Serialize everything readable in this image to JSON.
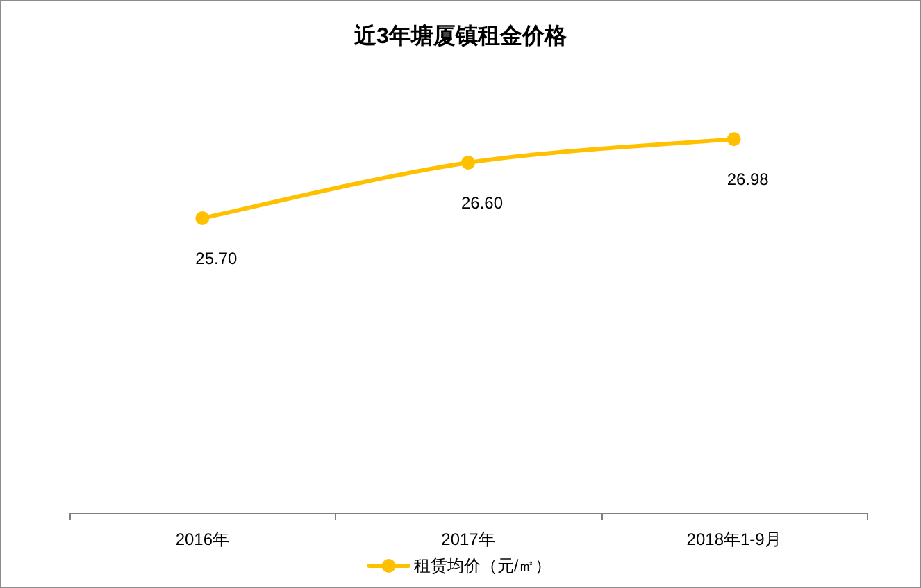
{
  "chart_data": {
    "type": "line",
    "title": "近3年塘厦镇租金价格",
    "categories": [
      "2016年",
      "2017年",
      "2018年1-9月"
    ],
    "series": [
      {
        "name": "租赁均价（元/㎡）",
        "color": "#ffc000",
        "values": [
          25.7,
          26.6,
          26.98
        ],
        "value_labels": [
          "25.70",
          "26.60",
          "26.98"
        ]
      }
    ],
    "legend": "bottom",
    "marker": "circle",
    "line_style": "solid"
  }
}
